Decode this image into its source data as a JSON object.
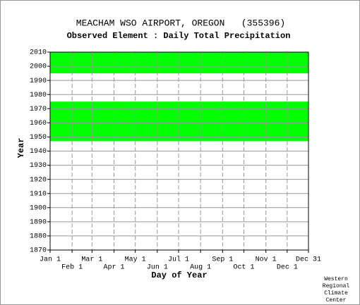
{
  "chart_data": {
    "type": "range",
    "title": "MEACHAM WSO AIRPORT, OREGON   (355396)",
    "subtitle": "Observed Element : Daily Total Precipitation",
    "ylabel": "Year",
    "xlabel": "Day of Year",
    "credit": [
      "Western",
      "Regional",
      "Climate",
      "Center"
    ],
    "ranges": [
      [
        1947,
        1975
      ],
      [
        1995,
        2010
      ]
    ],
    "color": "#00ff00",
    "xlim": [
      1,
      365
    ],
    "xticks": [
      {
        "value": 1,
        "label": "Jan 1"
      },
      {
        "value": 32,
        "label": "Feb 1"
      },
      {
        "value": 60,
        "label": "Mar 1"
      },
      {
        "value": 91,
        "label": "Apr 1"
      },
      {
        "value": 121,
        "label": "May 1"
      },
      {
        "value": 152,
        "label": "Jun 1"
      },
      {
        "value": 182,
        "label": "Jul 1"
      },
      {
        "value": 213,
        "label": "Aug 1"
      },
      {
        "value": 244,
        "label": "Sep 1"
      },
      {
        "value": 274,
        "label": "Oct 1"
      },
      {
        "value": 305,
        "label": "Nov 1"
      },
      {
        "value": 335,
        "label": "Dec 1"
      },
      {
        "value": 365,
        "label": "Dec 31"
      }
    ],
    "ylim": [
      1870,
      2010
    ],
    "yticks": [
      1870,
      1880,
      1890,
      1900,
      1910,
      1920,
      1930,
      1940,
      1950,
      1960,
      1970,
      1980,
      1990,
      2000,
      2010
    ],
    "grid": true
  }
}
